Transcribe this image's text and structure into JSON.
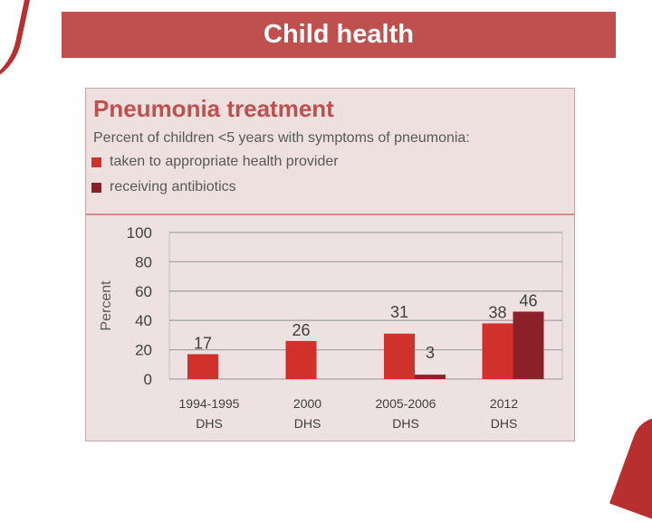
{
  "slide": {
    "title": "Child health"
  },
  "chart_data": {
    "type": "bar",
    "title": "Pneumonia treatment",
    "subtitle": "Percent of children <5 years with symptoms of pneumonia:",
    "ylabel": "Percent",
    "ylim": [
      0,
      100
    ],
    "yticks": [
      "0",
      "20",
      "40",
      "60",
      "80",
      "100"
    ],
    "categories": [
      [
        "1994-1995",
        "DHS"
      ],
      [
        "2000",
        "DHS"
      ],
      [
        "2005-2006",
        "DHS"
      ],
      [
        "2012",
        "DHS"
      ]
    ],
    "series": [
      {
        "name": "taken to appropriate health provider",
        "color": "#d0312b",
        "values": [
          17,
          26,
          31,
          38
        ]
      },
      {
        "name": "receiving antibiotics",
        "color": "#8b2029",
        "values": [
          null,
          null,
          3,
          46
        ]
      }
    ],
    "grid": true,
    "legend_position": "top-left"
  }
}
